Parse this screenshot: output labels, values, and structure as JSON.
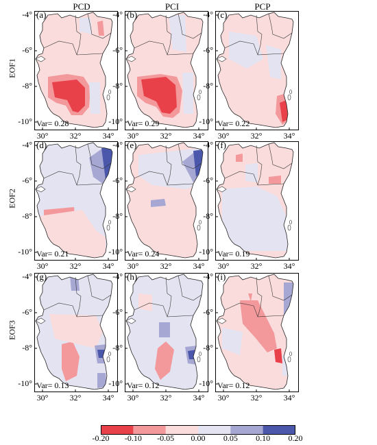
{
  "columns": [
    "PCD",
    "PCI",
    "PCP"
  ],
  "rows": [
    "EOF1",
    "EOF2",
    "EOF3"
  ],
  "panels": [
    {
      "label": "(a)",
      "variance": "Var= 0.28"
    },
    {
      "label": "(b)",
      "variance": "Var= 0.29"
    },
    {
      "label": "(c)",
      "variance": "Var= 0.22"
    },
    {
      "label": "(d)",
      "variance": "Var= 0.21"
    },
    {
      "label": "(e)",
      "variance": "Var= 0.24"
    },
    {
      "label": "(f)",
      "variance": "Var= 0.19"
    },
    {
      "label": "(g)",
      "variance": "Var= 0.13"
    },
    {
      "label": "(h)",
      "variance": "Var= 0.12"
    },
    {
      "label": "(i)",
      "variance": "Var= 0.12"
    }
  ],
  "lat_ticks": [
    "-4°",
    "-6°",
    "-8°",
    "-10°"
  ],
  "lon_ticks": [
    "30°",
    "32°",
    "34°"
  ],
  "colorbar": {
    "ticks": [
      "-0.20",
      "-0.10",
      "-0.05",
      "0.00",
      "0.05",
      "0.10",
      "0.20"
    ],
    "colors": [
      "#e8414a",
      "#f3989b",
      "#fadcdd",
      "#e3e3f1",
      "#a7a7d4",
      "#4a57aa"
    ]
  }
}
